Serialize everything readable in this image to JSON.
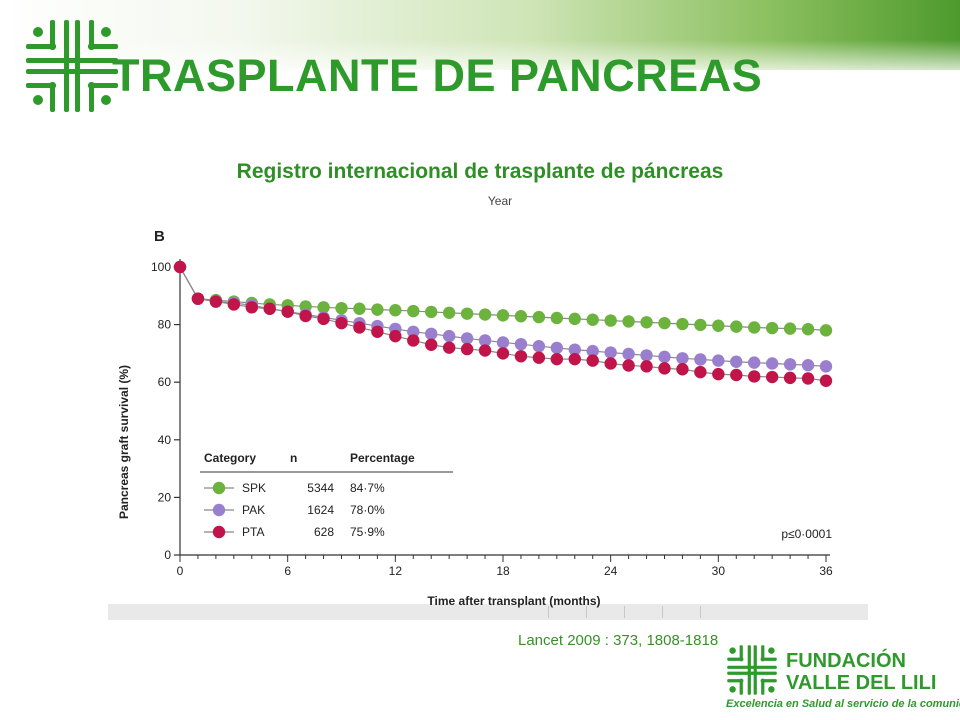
{
  "slide": {
    "title": "TRASPLANTE DE PANCREAS",
    "subtitle": "Registro internacional de trasplante de páncreas",
    "citation": "Lancet 2009 : 373, 1808-1818"
  },
  "footer": {
    "org_line1": "FUNDACIÓN",
    "org_line2": "VALLE DEL LILI",
    "tagline": "Excelencia en Salud al servicio de la comunidad"
  },
  "colors": {
    "brand_green": "#2f9a2c",
    "spk": "#6cb33e",
    "pak": "#9a7fcf",
    "pta": "#c0144a"
  },
  "chart_data": {
    "type": "line",
    "panel_label": "B",
    "top_label": "Year",
    "xlabel": "Time after transplant (months)",
    "ylabel": "Pancreas graft survival (%)",
    "xlim": [
      0,
      36
    ],
    "ylim": [
      0,
      100
    ],
    "xticks": [
      0,
      6,
      12,
      18,
      24,
      30,
      36
    ],
    "yticks": [
      0,
      20,
      40,
      60,
      80,
      100
    ],
    "x": [
      0,
      1,
      2,
      3,
      4,
      5,
      6,
      7,
      8,
      9,
      10,
      11,
      12,
      13,
      14,
      15,
      16,
      17,
      18,
      19,
      20,
      21,
      22,
      23,
      24,
      25,
      26,
      27,
      28,
      29,
      30,
      31,
      32,
      33,
      34,
      35,
      36
    ],
    "series": [
      {
        "name": "SPK",
        "color": "#6cb33e",
        "values": [
          100,
          89,
          88.5,
          88,
          87.5,
          87,
          86.7,
          86.3,
          86,
          85.7,
          85.5,
          85.2,
          85,
          84.7,
          84.4,
          84.1,
          83.8,
          83.5,
          83.2,
          82.9,
          82.6,
          82.3,
          82,
          81.7,
          81.4,
          81.1,
          80.8,
          80.5,
          80.2,
          79.9,
          79.6,
          79.3,
          79,
          78.8,
          78.6,
          78.4,
          78
        ]
      },
      {
        "name": "PAK",
        "color": "#9a7fcf",
        "values": [
          100,
          89,
          88,
          87.5,
          86.7,
          85.5,
          84.5,
          83.5,
          82.5,
          81.5,
          80.5,
          79.5,
          78.5,
          77.5,
          76.8,
          76,
          75.2,
          74.5,
          73.8,
          73.2,
          72.5,
          71.9,
          71.3,
          70.8,
          70.3,
          69.8,
          69.3,
          68.8,
          68.3,
          67.9,
          67.5,
          67.1,
          66.8,
          66.5,
          66.2,
          65.9,
          65.5
        ]
      },
      {
        "name": "PTA",
        "color": "#c0144a",
        "values": [
          100,
          89,
          88,
          87,
          86,
          85.5,
          84.5,
          83,
          82,
          80.5,
          79,
          77.5,
          76,
          74.5,
          73,
          72,
          71.5,
          71,
          70,
          69,
          68.5,
          68,
          68,
          67.5,
          66.5,
          65.8,
          65.5,
          64.8,
          64.5,
          63.5,
          62.8,
          62.5,
          62,
          61.8,
          61.5,
          61.3,
          60.5
        ]
      }
    ],
    "legend": {
      "headers": [
        "Category",
        "n",
        "Percentage"
      ],
      "rows": [
        {
          "name": "SPK",
          "n": "5344",
          "pct": "84·7%"
        },
        {
          "name": "PAK",
          "n": "1624",
          "pct": "78·0%"
        },
        {
          "name": "PTA",
          "n": "628",
          "pct": "75·9%"
        }
      ],
      "placement": "bottom-left"
    },
    "annotation": "p≤0·0001"
  }
}
